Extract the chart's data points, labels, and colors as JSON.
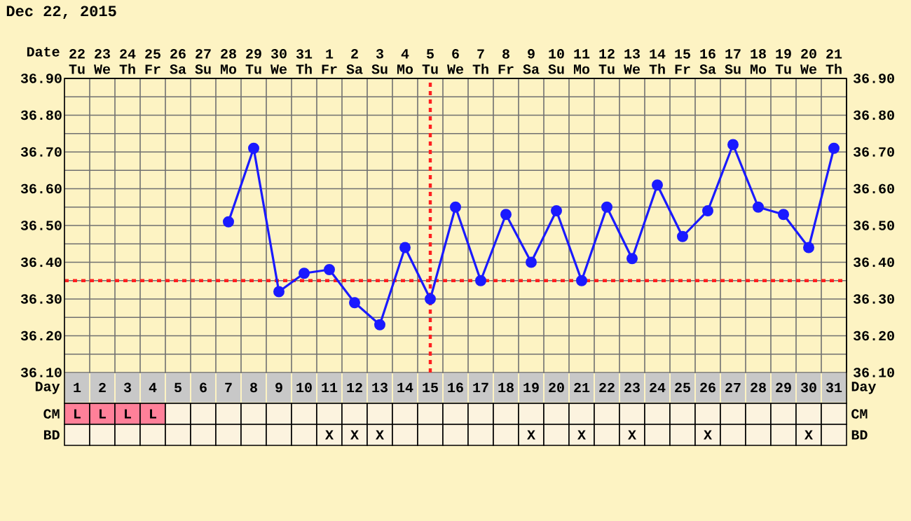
{
  "chart_data": [
    {
      "type": "line",
      "title": "Dec 22, 2015",
      "xlabel": "Day",
      "annotations": [
        "Date",
        "22 Tu",
        "23 We",
        "24 Th",
        "25 Fr",
        "26 Sa",
        "27 Su",
        "28 Mo",
        "29 Tu",
        "30 We",
        "31 Th",
        "1 Fr",
        "2 Sa",
        "3 Su",
        "4 Mo",
        "5 Tu",
        "6 We",
        "7 Th",
        "8 Fr",
        "9 Sa",
        "10 Su",
        "11 Mo",
        "12 Tu",
        "13 We",
        "14 Th",
        "15 Fr",
        "16 Sa",
        "17 Su",
        "18 Mo",
        "19 Tu",
        "20 We",
        "21 Th"
      ],
      "x": [
        7,
        8,
        9,
        10,
        11,
        12,
        13,
        14,
        15,
        16,
        17,
        18,
        19,
        20,
        21,
        22,
        23,
        24,
        25,
        26,
        27,
        28,
        29,
        30,
        31
      ],
      "values": [
        36.51,
        36.71,
        36.32,
        36.37,
        36.38,
        36.29,
        36.23,
        36.44,
        36.3,
        36.55,
        36.35,
        36.53,
        36.4,
        36.54,
        36.35,
        36.55,
        36.41,
        36.61,
        36.47,
        36.54,
        36.72,
        36.55,
        36.53,
        36.44,
        36.71
      ],
      "color": "#1a1aff",
      "marker": "circle",
      "line_style": "solid",
      "grid": true,
      "xlim": [
        0.5,
        31.5
      ],
      "xticks": [
        1,
        2,
        3,
        4,
        5,
        6,
        7,
        8,
        9,
        10,
        11,
        12,
        13,
        14,
        15,
        16,
        17,
        18,
        19,
        20,
        21,
        22,
        23,
        24,
        25,
        26,
        27,
        28,
        29,
        30,
        31
      ],
      "ylim": [
        36.1,
        36.9
      ],
      "yticks": [
        {
          "value": 36.1,
          "label": "36.10"
        },
        {
          "value": 36.2,
          "label": "36.20"
        },
        {
          "value": 36.3,
          "label": "36.30"
        },
        {
          "value": 36.4,
          "label": "36.40"
        },
        {
          "value": 36.5,
          "label": "36.50"
        },
        {
          "value": 36.6,
          "label": "36.60"
        },
        {
          "value": 36.7,
          "label": "36.70"
        },
        {
          "value": 36.8,
          "label": "36.80"
        },
        {
          "value": 36.9,
          "label": "36.90"
        }
      ],
      "y2lim": [
        36.1,
        36.9
      ],
      "y2ticks": [
        {
          "value": 36.1,
          "label": "36.10"
        },
        {
          "value": 36.2,
          "label": "36.20"
        },
        {
          "value": 36.3,
          "label": "36.30"
        },
        {
          "value": 36.4,
          "label": "36.40"
        },
        {
          "value": 36.5,
          "label": "36.50"
        },
        {
          "value": 36.6,
          "label": "36.60"
        },
        {
          "value": 36.7,
          "label": "36.70"
        },
        {
          "value": 36.8,
          "label": "36.80"
        },
        {
          "value": 36.9,
          "label": "36.90"
        }
      ],
      "ref_lines": [
        {
          "axis": "y",
          "value": 36.35,
          "color": "#ff2020",
          "line_style": "dotted"
        },
        {
          "axis": "x",
          "value": 15,
          "color": "#ff2020",
          "line_style": "dotted"
        }
      ]
    },
    {
      "type": "heatmap",
      "tick_labels": "y",
      "categories": [
        "1",
        "2",
        "3",
        "4",
        "5",
        "6",
        "7",
        "8",
        "9",
        "10",
        "11",
        "12",
        "13",
        "14",
        "15",
        "16",
        "17",
        "18",
        "19",
        "20",
        "21",
        "22",
        "23",
        "24",
        "25",
        "26",
        "27",
        "28",
        "29",
        "30",
        "31"
      ],
      "y_categories": [
        "CM",
        "BD"
      ],
      "y2_categories": [
        "CM",
        "BD"
      ],
      "cells": [
        [
          null,
          null,
          null,
          null,
          null,
          null,
          null,
          null,
          null,
          null,
          null,
          null,
          null,
          null,
          null,
          null,
          null,
          null,
          null,
          null,
          null,
          null,
          null,
          null,
          null,
          null,
          null,
          null,
          null,
          null,
          null
        ],
        [
          null,
          null,
          null,
          null,
          null,
          null,
          null,
          null,
          null,
          null,
          null,
          null,
          null,
          null,
          null,
          null,
          null,
          null,
          null,
          null,
          null,
          null,
          null,
          null,
          null,
          null,
          null,
          null,
          null,
          null,
          null
        ]
      ],
      "cell_labels": [
        [
          "L",
          "L",
          "L",
          "L",
          null,
          null,
          null,
          null,
          null,
          null,
          null,
          null,
          null,
          null,
          null,
          null,
          null,
          null,
          null,
          null,
          null,
          null,
          null,
          null,
          null,
          null,
          null,
          null,
          null,
          null,
          null
        ],
        [
          null,
          null,
          null,
          null,
          null,
          null,
          null,
          null,
          null,
          null,
          "X",
          "X",
          "X",
          null,
          null,
          null,
          null,
          null,
          "X",
          null,
          "X",
          null,
          "X",
          null,
          null,
          "X",
          null,
          null,
          null,
          "X",
          null
        ]
      ]
    }
  ]
}
